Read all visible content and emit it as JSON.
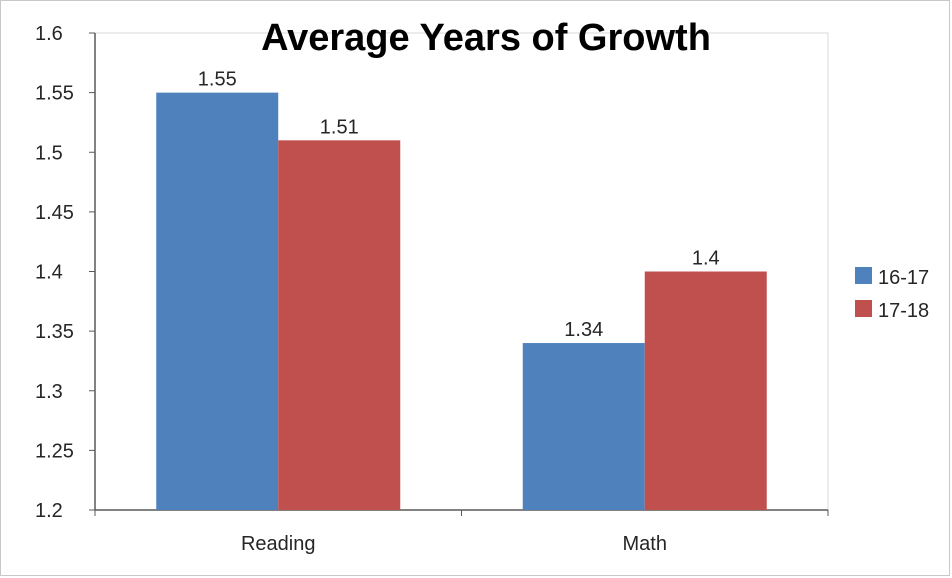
{
  "chart_data": {
    "type": "bar",
    "title": "Average Years of Growth",
    "categories": [
      "Reading",
      "Math"
    ],
    "series": [
      {
        "name": "16-17",
        "values": [
          1.55,
          1.34
        ],
        "color": "#4f81bd"
      },
      {
        "name": "17-18",
        "values": [
          1.51,
          1.4
        ],
        "color": "#c0504d"
      }
    ],
    "data_labels": [
      [
        "1.55",
        "1.34"
      ],
      [
        "1.51",
        "1.4"
      ]
    ],
    "ylim": [
      1.2,
      1.6
    ],
    "y_ticks": [
      "1.2",
      "1.25",
      "1.3",
      "1.35",
      "1.4",
      "1.45",
      "1.5",
      "1.55",
      "1.6"
    ],
    "xlabel": "",
    "ylabel": "",
    "grid": false,
    "legend_position": "right",
    "axis_color": "#595959"
  }
}
